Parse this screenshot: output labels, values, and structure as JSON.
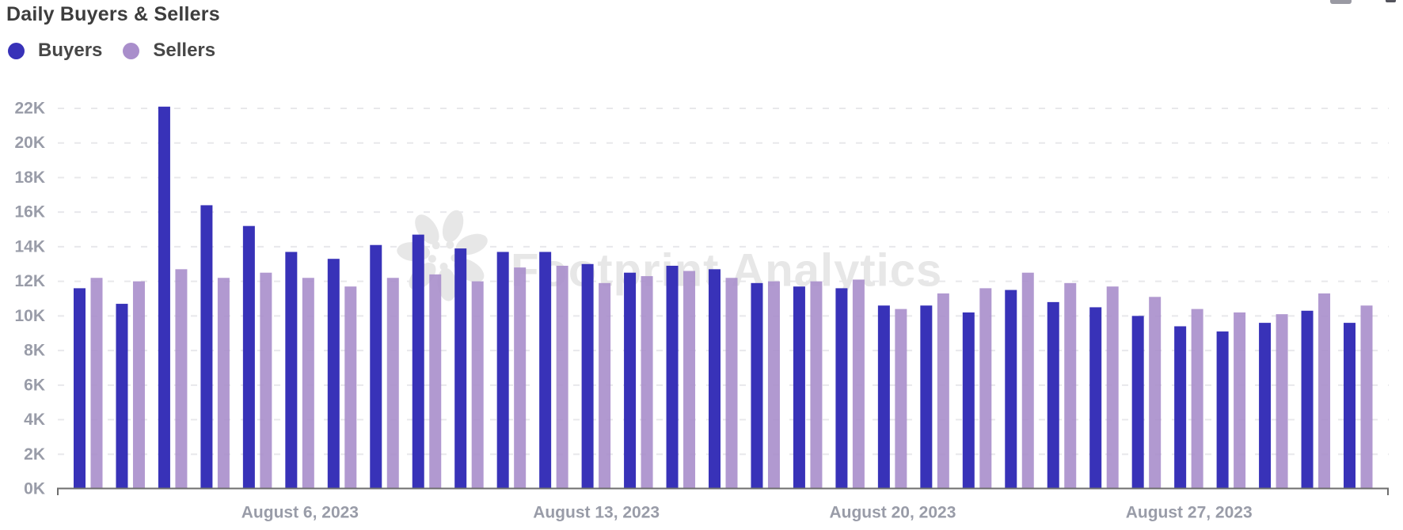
{
  "header": {
    "title": "Daily Buyers & Sellers"
  },
  "legend": {
    "items": [
      {
        "label": "Buyers",
        "color": "#3832b8",
        "dot_icon": "circle"
      },
      {
        "label": "Sellers",
        "color": "#a98ecb",
        "dot_icon": "circle"
      }
    ]
  },
  "watermark": {
    "text": "Footprint Analytics",
    "logo_icon": "footprint-flower-logo",
    "color": "#e7e7e7"
  },
  "axes": {
    "y_tick_labels": [
      "0K",
      "2K",
      "4K",
      "6K",
      "8K",
      "10K",
      "12K",
      "14K",
      "16K",
      "18K",
      "20K",
      "22K"
    ],
    "x_tick_labels": [
      {
        "label": "August 6, 2023",
        "day": 6
      },
      {
        "label": "August 13, 2023",
        "day": 13
      },
      {
        "label": "August 20, 2023",
        "day": 20
      },
      {
        "label": "August 27, 2023",
        "day": 27
      }
    ],
    "label_color": "#999ca8",
    "axis_line_color": "#6e6e6e",
    "gridline_color": "#e8e8eb"
  },
  "chart_data": {
    "type": "bar",
    "title": "Daily Buyers & Sellers",
    "xlabel": "",
    "ylabel": "",
    "ylim": [
      0,
      22000
    ],
    "y_tick_step": 2000,
    "grid": "horizontal-dashed",
    "legend_position": "top-left",
    "categories": [
      "2023-08-01",
      "2023-08-02",
      "2023-08-03",
      "2023-08-04",
      "2023-08-05",
      "2023-08-06",
      "2023-08-07",
      "2023-08-08",
      "2023-08-09",
      "2023-08-10",
      "2023-08-11",
      "2023-08-12",
      "2023-08-13",
      "2023-08-14",
      "2023-08-15",
      "2023-08-16",
      "2023-08-17",
      "2023-08-18",
      "2023-08-19",
      "2023-08-20",
      "2023-08-21",
      "2023-08-22",
      "2023-08-23",
      "2023-08-24",
      "2023-08-25",
      "2023-08-26",
      "2023-08-27",
      "2023-08-28",
      "2023-08-29",
      "2023-08-30",
      "2023-08-31"
    ],
    "series": [
      {
        "name": "Buyers",
        "color": "#3832b8",
        "values": [
          11600,
          10700,
          22100,
          16400,
          15200,
          13700,
          13300,
          14100,
          14700,
          13900,
          13700,
          13700,
          13000,
          12500,
          12900,
          12700,
          11900,
          11700,
          11600,
          10600,
          10600,
          10200,
          11500,
          10800,
          10500,
          10000,
          9400,
          9100,
          9600,
          10300,
          9600
        ]
      },
      {
        "name": "Sellers",
        "color": "#a98ecb",
        "values": [
          12200,
          12000,
          12700,
          12200,
          12500,
          12200,
          11700,
          12200,
          12400,
          12000,
          12800,
          12900,
          11900,
          12300,
          12600,
          12200,
          12000,
          12000,
          12100,
          10400,
          11300,
          11600,
          12500,
          11900,
          11700,
          11100,
          10400,
          10200,
          10100,
          11300,
          10600
        ]
      }
    ]
  }
}
